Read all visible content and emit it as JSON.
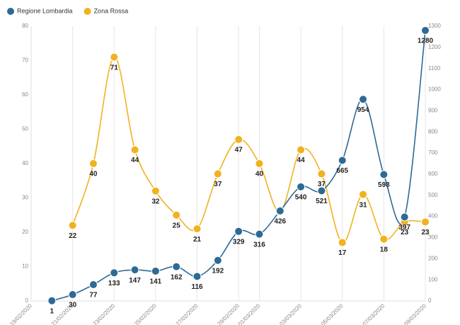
{
  "chart_data": {
    "type": "line",
    "categories": [
      "19/02/2020",
      null,
      "21/02/2020",
      null,
      "23/02/2020",
      null,
      "25/02/2020",
      null,
      "27/02/2020",
      null,
      "29/02/2020",
      "01/03/2020",
      null,
      "03/03/2020",
      null,
      "05/03/2020",
      null,
      "07/03/2020",
      null,
      "09/03/2020"
    ],
    "series": [
      {
        "name": "Regione Lombardia",
        "color": "#2d6a95",
        "axis": "y2",
        "values": [
          null,
          1,
          30,
          77,
          133,
          147,
          141,
          162,
          116,
          192,
          329,
          316,
          426,
          540,
          521,
          665,
          954,
          598,
          397,
          1280
        ]
      },
      {
        "name": "Zona Rossa",
        "color": "#f1b21f",
        "values": [
          null,
          null,
          22,
          40,
          71,
          44,
          32,
          25,
          21,
          37,
          47,
          40,
          26,
          44,
          37,
          17,
          31,
          18,
          23,
          23
        ],
        "value_labels": [
          null,
          null,
          "22",
          "40",
          "71",
          "44",
          "32",
          "25",
          "21",
          "37",
          "47",
          "40",
          null,
          "44",
          "37",
          "17",
          "31",
          "18",
          "23",
          "23"
        ]
      }
    ],
    "ylim": [
      0,
      80
    ],
    "yticks": [
      0,
      10,
      20,
      30,
      40,
      50,
      60,
      70,
      80
    ],
    "y2lim": [
      0,
      1300
    ],
    "y2ticks": [
      0,
      100,
      200,
      300,
      400,
      500,
      600,
      700,
      800,
      900,
      1000,
      1100,
      1200,
      1300
    ],
    "legend": "top-left",
    "grid": true
  }
}
